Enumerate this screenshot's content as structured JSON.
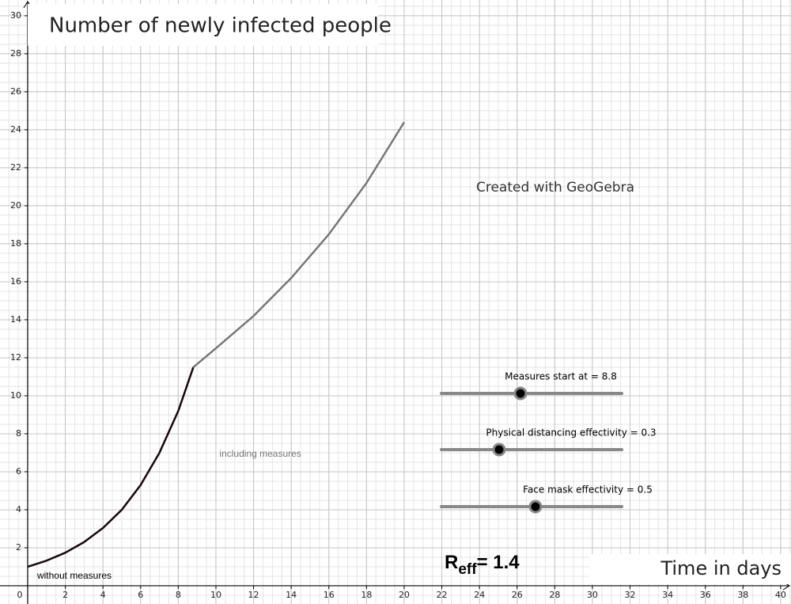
{
  "chart_data": {
    "type": "line",
    "title": "Number of newly infected people",
    "x_label": "Time in days",
    "watermark": "Created with GeoGebra",
    "xlim": [
      -1.47,
      40.55
    ],
    "ylim": [
      -0.96,
      30.83
    ],
    "xticks": [
      0,
      2,
      4,
      6,
      8,
      10,
      12,
      14,
      16,
      18,
      20,
      22,
      24,
      26,
      28,
      30,
      32,
      34,
      36,
      38,
      40
    ],
    "yticks": [
      2,
      4,
      6,
      8,
      10,
      12,
      14,
      16,
      18,
      20,
      22,
      24,
      26,
      28,
      30
    ],
    "grid": true,
    "series": [
      {
        "name": "without measures",
        "color": "#1a0606",
        "x": [
          0,
          1,
          2,
          3,
          4,
          5,
          6,
          7,
          8,
          8.8
        ],
        "values": [
          1,
          1.32,
          1.74,
          2.3,
          3.04,
          4.0,
          5.3,
          7.0,
          9.2,
          11.5
        ]
      },
      {
        "name": "including measures",
        "color": "#777777",
        "x": [
          8.8,
          10,
          12,
          14,
          16,
          18,
          20
        ],
        "values": [
          11.5,
          12.5,
          14.2,
          16.2,
          18.5,
          21.2,
          24.4
        ]
      }
    ],
    "sliders": [
      {
        "label": "Measures start at = 8.8"
      },
      {
        "label": "Physical distancing effectivity = 0.3"
      },
      {
        "label": "Face mask effectivity = 0.5"
      }
    ],
    "reff": {
      "symbol": "R",
      "subscript": "eff",
      "text": "= 1.4"
    }
  }
}
